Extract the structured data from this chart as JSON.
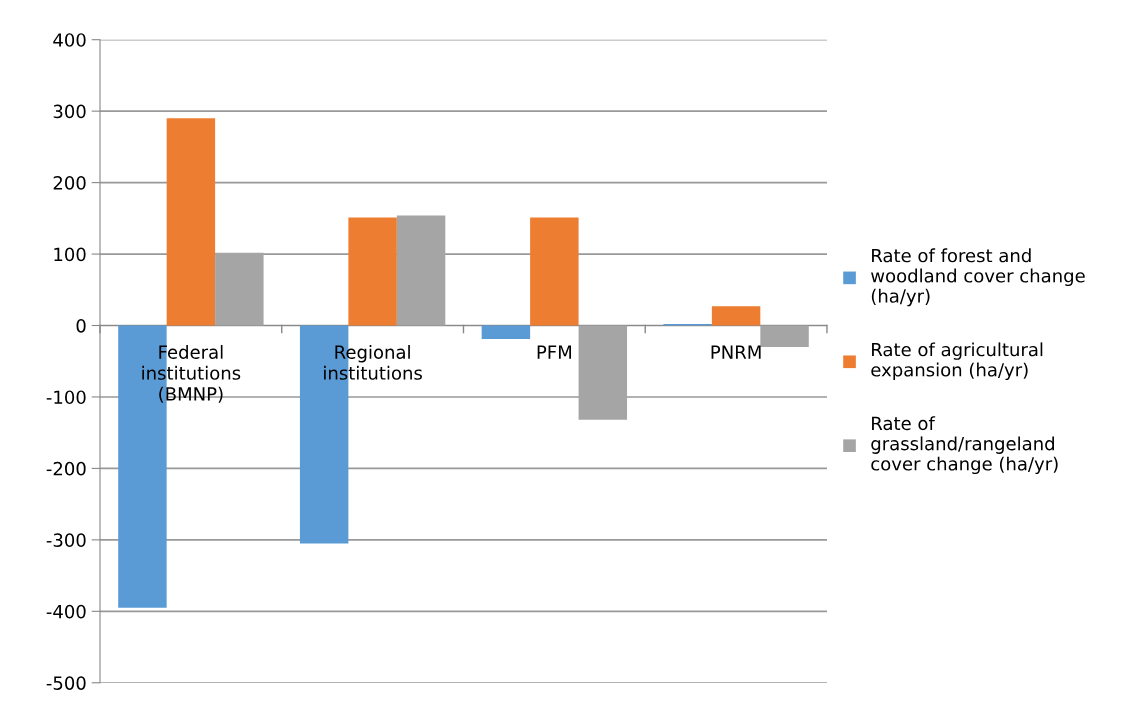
{
  "chart_data": {
    "type": "bar",
    "categories": [
      "Federal institutions (BMNP)",
      "Regional institutions",
      "PFM",
      "PNRM"
    ],
    "series": [
      {
        "name": "Rate of forest and woodland cover change (ha/yr)",
        "color": "#5b9bd5",
        "values": [
          -395,
          -305,
          -19,
          2
        ]
      },
      {
        "name": "Rate of agricultural expansion (ha/yr)",
        "color": "#ed7d31",
        "values": [
          290,
          151,
          151,
          27
        ]
      },
      {
        "name": "Rate of grassland/rangeland cover change (ha/yr)",
        "color": "#a5a5a5",
        "values": [
          102,
          154,
          -132,
          -30
        ]
      }
    ],
    "ylim": [
      -500,
      400
    ],
    "yticks": [
      -500,
      -400,
      -300,
      -200,
      -100,
      0,
      100,
      200,
      300,
      400
    ],
    "grid": "y",
    "legend": "right"
  }
}
